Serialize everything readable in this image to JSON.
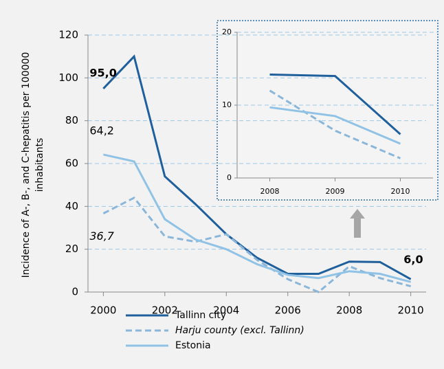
{
  "chart_data": {
    "type": "line",
    "ylabel": [
      "Incidence of A-, B-, and C-hepatitis per 100000",
      "inhabitants"
    ],
    "x": [
      2000,
      2001,
      2002,
      2003,
      2004,
      2005,
      2006,
      2007,
      2008,
      2009,
      2010
    ],
    "xlim": [
      1999.5,
      2010.5
    ],
    "xticks": [
      2000,
      2002,
      2004,
      2006,
      2008,
      2010
    ],
    "ylim": [
      0,
      120
    ],
    "yticks": [
      0,
      20,
      40,
      60,
      80,
      100,
      120
    ],
    "grid": true,
    "series": [
      {
        "name": "Tallinn city",
        "color": "#1f5f9c",
        "dash": false,
        "italic": false,
        "values": [
          95.0,
          110,
          54,
          41,
          27,
          16,
          8.5,
          8.5,
          14.2,
          14.0,
          6.0
        ],
        "value_labels": [
          "95,0",
          null,
          null,
          null,
          null,
          null,
          null,
          null,
          null,
          null,
          "6,0"
        ]
      },
      {
        "name": "Harju county (excl. Tallinn)",
        "color": "#8ab6da",
        "dash": true,
        "italic": true,
        "values": [
          36.7,
          44,
          26,
          23.5,
          27,
          15,
          6,
          0,
          12,
          6.5,
          2.7
        ],
        "value_labels": [
          "36,7",
          null,
          null,
          null,
          null,
          null,
          null,
          null,
          null,
          null,
          null
        ]
      },
      {
        "name": "Estonia",
        "color": "#90c2e6",
        "dash": false,
        "italic": false,
        "values": [
          64.2,
          61,
          34,
          24.5,
          20,
          13,
          8,
          6.5,
          9.7,
          8.5,
          4.7
        ],
        "value_labels": [
          "64,2",
          null,
          null,
          null,
          null,
          null,
          null,
          null,
          null,
          null,
          null
        ]
      }
    ],
    "inset": {
      "xlim": [
        2007.5,
        2010.5
      ],
      "xticks": [
        2008,
        2009,
        2010
      ],
      "ylim": [
        0,
        20
      ],
      "yticks": [
        0,
        10,
        20
      ]
    }
  }
}
